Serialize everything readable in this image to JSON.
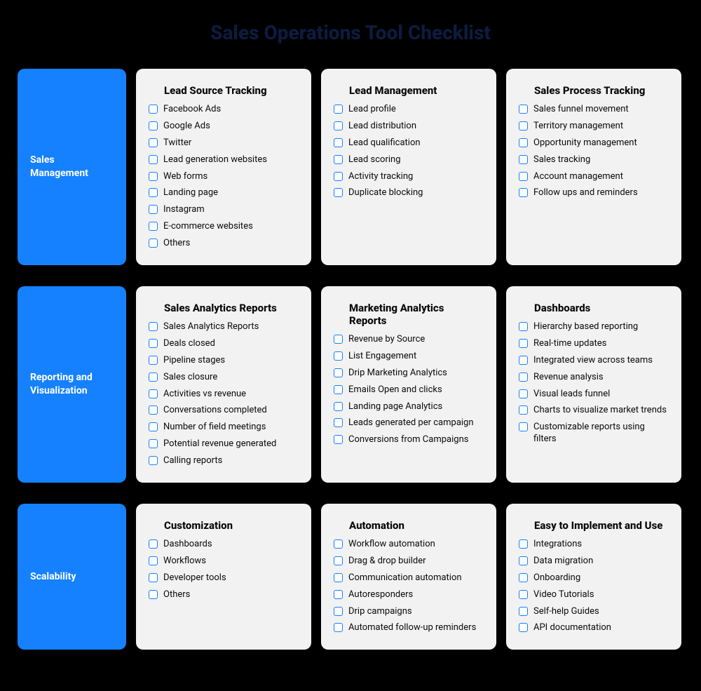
{
  "title": "Sales Operations Tool Checklist",
  "colors": {
    "category_bg": "#1581ff",
    "card_bg": "#f2f2f2",
    "title_color": "#0d1b3e",
    "checkbox_border": "#1581ff",
    "body_bg": "#000000"
  },
  "rows": [
    {
      "category": "Sales Management",
      "cards": [
        {
          "title": "Lead Source Tracking",
          "items": [
            "Facebook Ads",
            "Google Ads",
            "Twitter",
            "Lead generation websites",
            "Web forms",
            "Landing page",
            "Instagram",
            "E-commerce websites",
            "Others"
          ]
        },
        {
          "title": "Lead Management",
          "items": [
            "Lead profile",
            "Lead distribution",
            "Lead qualification",
            "Lead scoring",
            "Activity tracking",
            "Duplicate blocking"
          ]
        },
        {
          "title": "Sales Process Tracking",
          "items": [
            "Sales funnel movement",
            "Territory management",
            "Opportunity management",
            "Sales tracking",
            "Account management",
            "Follow ups and reminders"
          ]
        }
      ]
    },
    {
      "category": "Reporting and Visualization",
      "cards": [
        {
          "title": "Sales Analytics Reports",
          "items": [
            "Sales Analytics Reports",
            "Deals closed",
            "Pipeline stages",
            "Sales closure",
            "Activities vs revenue",
            "Conversations completed",
            "Number of field meetings",
            "Potential revenue generated",
            "Calling reports"
          ]
        },
        {
          "title": "Marketing Analytics Reports",
          "items": [
            "Revenue by Source",
            "List Engagement",
            "Drip Marketing Analytics",
            "Emails Open and clicks",
            "Landing page Analytics",
            "Leads generated per campaign",
            "Conversions from Campaigns"
          ]
        },
        {
          "title": "Dashboards",
          "items": [
            "Hierarchy based reporting",
            "Real-time updates",
            "Integrated view across teams",
            "Revenue analysis",
            "Visual leads funnel",
            "Charts to visualize market trends",
            "Customizable reports using filters"
          ]
        }
      ]
    },
    {
      "category": "Scalability",
      "cards": [
        {
          "title": "Customization",
          "items": [
            "Dashboards",
            "Workflows",
            "Developer tools",
            "Others"
          ]
        },
        {
          "title": "Automation",
          "items": [
            "Workflow automation",
            "Drag & drop builder",
            "Communication automation",
            "Autoresponders",
            "Drip campaigns",
            "Automated follow-up reminders"
          ]
        },
        {
          "title": "Easy to Implement and Use",
          "items": [
            "Integrations",
            "Data migration",
            "Onboarding",
            "Video Tutorials",
            "Self-help Guides",
            "API documentation"
          ]
        }
      ]
    }
  ]
}
